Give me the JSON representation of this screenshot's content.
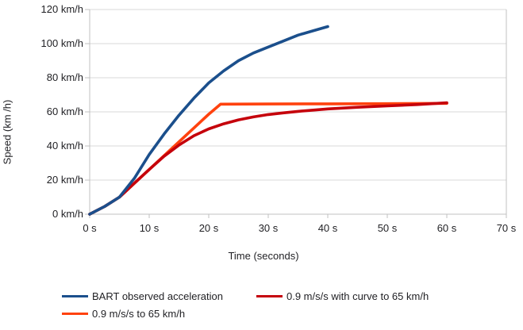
{
  "chart_data": {
    "type": "line",
    "title": "",
    "xlabel": "Time (seconds)",
    "ylabel": "Speed (km /h)",
    "xlim": [
      0,
      70
    ],
    "ylim": [
      0,
      120
    ],
    "grid": "horizontal",
    "legend_position": "bottom",
    "x_tick_values": [
      0,
      10,
      20,
      30,
      40,
      50,
      60,
      70
    ],
    "x_tick_labels": [
      "0 s",
      "10 s",
      "20 s",
      "30 s",
      "40 s",
      "50 s",
      "60 s",
      "70 s"
    ],
    "y_tick_values": [
      0,
      20,
      40,
      60,
      80,
      100,
      120
    ],
    "y_tick_labels": [
      "0 km/h",
      "20 km/h",
      "40 km/h",
      "60 km/h",
      "80 km/h",
      "100 km/h",
      "120 km/h"
    ],
    "series": [
      {
        "name": "BART observed acceleration",
        "color": "#1B4F8C",
        "points": [
          [
            0,
            0
          ],
          [
            2.5,
            4.5
          ],
          [
            5,
            10
          ],
          [
            7.5,
            21
          ],
          [
            10,
            35
          ],
          [
            12.5,
            47
          ],
          [
            15,
            58
          ],
          [
            17.5,
            68
          ],
          [
            20,
            77
          ],
          [
            22.5,
            84
          ],
          [
            25,
            90
          ],
          [
            27.5,
            94.5
          ],
          [
            30,
            98
          ],
          [
            32.5,
            101.5
          ],
          [
            35,
            105
          ],
          [
            37.5,
            107.5
          ],
          [
            40,
            110
          ]
        ]
      },
      {
        "name": "0.9 m/s/s with curve to 65 km/h",
        "color": "#C5000B",
        "points": [
          [
            0,
            0
          ],
          [
            2.5,
            4.5
          ],
          [
            5,
            10
          ],
          [
            7.5,
            18.2
          ],
          [
            10,
            26.2
          ],
          [
            12.5,
            34
          ],
          [
            15,
            40.5
          ],
          [
            17.5,
            46
          ],
          [
            20,
            50
          ],
          [
            22.5,
            53
          ],
          [
            25,
            55.3
          ],
          [
            27.5,
            57
          ],
          [
            30,
            58.4
          ],
          [
            32.5,
            59.4
          ],
          [
            35,
            60.3
          ],
          [
            40,
            61.7
          ],
          [
            45,
            62.7
          ],
          [
            50,
            63.5
          ],
          [
            55,
            64.3
          ],
          [
            60,
            65.3
          ]
        ]
      },
      {
        "name": "0.9 m/s/s to 65 km/h",
        "color": "#FF420E",
        "points": [
          [
            0,
            0
          ],
          [
            2.5,
            4.5
          ],
          [
            5,
            10
          ],
          [
            10,
            26.2
          ],
          [
            15,
            42.4
          ],
          [
            20,
            58.6
          ],
          [
            22,
            64.5
          ],
          [
            30,
            64.6
          ],
          [
            40,
            64.7
          ],
          [
            50,
            64.8
          ],
          [
            60,
            65
          ]
        ]
      }
    ]
  }
}
